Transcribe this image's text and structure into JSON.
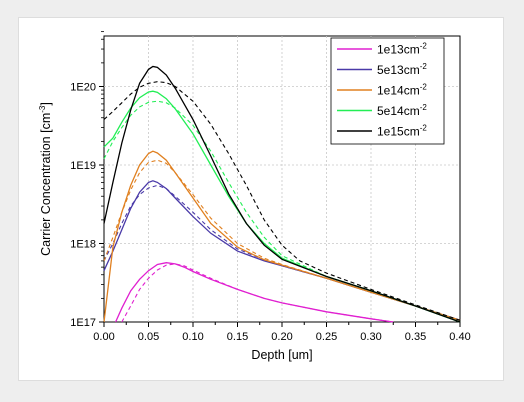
{
  "chart_data": {
    "type": "line",
    "xlabel": "Depth [um]",
    "ylabel": "Carrier Concentration [cm",
    "ylabel_sup": "-3",
    "ylabel_tail": "]",
    "xlim": [
      0,
      0.4
    ],
    "ylim": [
      1e+17,
      5e+20
    ],
    "yscale": "log",
    "grid": true,
    "legend_position": "top-right",
    "xticks": [
      "0.00",
      "0.05",
      "0.10",
      "0.15",
      "0.20",
      "0.25",
      "0.30",
      "0.35",
      "0.40"
    ],
    "yticks": [
      "1E17",
      "1E18",
      "1E19",
      "1E20"
    ],
    "series": [
      {
        "name": "1e13cm",
        "name_sup": "-2",
        "color": "#e020d0",
        "solid": [
          [
            0.013,
            1e+17
          ],
          [
            0.02,
            1.5e+17
          ],
          [
            0.03,
            2.5e+17
          ],
          [
            0.04,
            3.5e+17
          ],
          [
            0.05,
            4.5e+17
          ],
          [
            0.06,
            5.4e+17
          ],
          [
            0.07,
            5.7e+17
          ],
          [
            0.08,
            5.5e+17
          ],
          [
            0.09,
            5e+17
          ],
          [
            0.1,
            4.4e+17
          ],
          [
            0.12,
            3.5e+17
          ],
          [
            0.15,
            2.6e+17
          ],
          [
            0.18,
            2e+17
          ],
          [
            0.2,
            1.75e+17
          ],
          [
            0.25,
            1.35e+17
          ],
          [
            0.3,
            1.1e+17
          ],
          [
            0.325,
            1e+17
          ]
        ],
        "dashed": [
          [
            0.02,
            1e+17
          ],
          [
            0.03,
            1.6e+17
          ],
          [
            0.04,
            2.6e+17
          ],
          [
            0.05,
            3.6e+17
          ],
          [
            0.06,
            4.6e+17
          ],
          [
            0.07,
            5.3e+17
          ],
          [
            0.08,
            5.5e+17
          ],
          [
            0.09,
            5.2e+17
          ],
          [
            0.1,
            4.6e+17
          ],
          [
            0.12,
            3.6e+17
          ],
          [
            0.15,
            2.6e+17
          ],
          [
            0.18,
            2e+17
          ],
          [
            0.2,
            1.75e+17
          ],
          [
            0.25,
            1.35e+17
          ],
          [
            0.3,
            1.1e+17
          ],
          [
            0.325,
            1e+17
          ]
        ]
      },
      {
        "name": "5e13cm",
        "name_sup": "-2",
        "color": "#4a3aa8",
        "solid": [
          [
            0.0,
            4.5e+17
          ],
          [
            0.01,
            8e+17
          ],
          [
            0.02,
            1.5e+18
          ],
          [
            0.03,
            2.8e+18
          ],
          [
            0.04,
            4.5e+18
          ],
          [
            0.05,
            6e+18
          ],
          [
            0.055,
            6.3e+18
          ],
          [
            0.06,
            6e+18
          ],
          [
            0.07,
            5e+18
          ],
          [
            0.08,
            3.8e+18
          ],
          [
            0.1,
            2.2e+18
          ],
          [
            0.12,
            1.35e+18
          ],
          [
            0.15,
            8e+17
          ],
          [
            0.18,
            6e+17
          ],
          [
            0.2,
            5.2e+17
          ],
          [
            0.25,
            3.6e+17
          ],
          [
            0.3,
            2.4e+17
          ],
          [
            0.35,
            1.6e+17
          ],
          [
            0.4,
            1.05e+17
          ]
        ],
        "dashed": [
          [
            0.0,
            6e+17
          ],
          [
            0.01,
            1e+18
          ],
          [
            0.02,
            1.8e+18
          ],
          [
            0.03,
            3e+18
          ],
          [
            0.04,
            4.2e+18
          ],
          [
            0.05,
            5.1e+18
          ],
          [
            0.06,
            5.5e+18
          ],
          [
            0.07,
            5e+18
          ],
          [
            0.08,
            4e+18
          ],
          [
            0.1,
            2.5e+18
          ],
          [
            0.12,
            1.5e+18
          ],
          [
            0.15,
            8.5e+17
          ],
          [
            0.18,
            6.2e+17
          ],
          [
            0.2,
            5.2e+17
          ],
          [
            0.25,
            3.6e+17
          ],
          [
            0.3,
            2.4e+17
          ],
          [
            0.35,
            1.6e+17
          ],
          [
            0.4,
            1.05e+17
          ]
        ]
      },
      {
        "name": "1e14cm",
        "name_sup": "-2",
        "color": "#e08020",
        "solid": [
          [
            0.0,
            1e+17
          ],
          [
            0.01,
            9e+17
          ],
          [
            0.02,
            2.5e+18
          ],
          [
            0.03,
            5.5e+18
          ],
          [
            0.04,
            1e+19
          ],
          [
            0.05,
            1.4e+19
          ],
          [
            0.055,
            1.5e+19
          ],
          [
            0.06,
            1.42e+19
          ],
          [
            0.07,
            1.15e+19
          ],
          [
            0.08,
            8e+18
          ],
          [
            0.1,
            3.8e+18
          ],
          [
            0.12,
            1.8e+18
          ],
          [
            0.15,
            9e+17
          ],
          [
            0.18,
            6.2e+17
          ],
          [
            0.2,
            5.3e+17
          ],
          [
            0.25,
            3.6e+17
          ],
          [
            0.3,
            2.4e+17
          ],
          [
            0.35,
            1.6e+17
          ],
          [
            0.4,
            1.05e+17
          ]
        ],
        "dashed": [
          [
            0.0,
            6e+17
          ],
          [
            0.01,
            1.2e+18
          ],
          [
            0.02,
            2.5e+18
          ],
          [
            0.03,
            4.8e+18
          ],
          [
            0.04,
            8e+18
          ],
          [
            0.05,
            1.08e+19
          ],
          [
            0.06,
            1.15e+19
          ],
          [
            0.07,
            1.05e+19
          ],
          [
            0.08,
            8e+18
          ],
          [
            0.1,
            4.2e+18
          ],
          [
            0.12,
            2.1e+18
          ],
          [
            0.15,
            1e+18
          ],
          [
            0.18,
            6.5e+17
          ],
          [
            0.2,
            5.4e+17
          ],
          [
            0.25,
            3.6e+17
          ],
          [
            0.3,
            2.4e+17
          ],
          [
            0.35,
            1.6e+17
          ],
          [
            0.4,
            1.05e+17
          ]
        ]
      },
      {
        "name": "5e14cm",
        "name_sup": "-2",
        "color": "#22ee55",
        "solid": [
          [
            0.0,
            1.7e+19
          ],
          [
            0.01,
            2.2e+19
          ],
          [
            0.02,
            3.5e+19
          ],
          [
            0.03,
            5.3e+19
          ],
          [
            0.04,
            7.2e+19
          ],
          [
            0.05,
            8.5e+19
          ],
          [
            0.055,
            8.7e+19
          ],
          [
            0.06,
            8.4e+19
          ],
          [
            0.07,
            7e+19
          ],
          [
            0.08,
            5.2e+19
          ],
          [
            0.1,
            2.5e+19
          ],
          [
            0.12,
            1e+19
          ],
          [
            0.14,
            4e+18
          ],
          [
            0.16,
            1.8e+18
          ],
          [
            0.18,
            1e+18
          ],
          [
            0.2,
            6.5e+17
          ],
          [
            0.25,
            3.8e+17
          ],
          [
            0.3,
            2.5e+17
          ],
          [
            0.35,
            1.6e+17
          ],
          [
            0.4,
            1e+17
          ]
        ],
        "dashed": [
          [
            0.0,
            1.2e+19
          ],
          [
            0.01,
            2e+19
          ],
          [
            0.02,
            3e+19
          ],
          [
            0.03,
            4.3e+19
          ],
          [
            0.04,
            5.5e+19
          ],
          [
            0.05,
            6.3e+19
          ],
          [
            0.06,
            6.5e+19
          ],
          [
            0.07,
            6.2e+19
          ],
          [
            0.08,
            5.3e+19
          ],
          [
            0.1,
            3.2e+19
          ],
          [
            0.12,
            1.5e+19
          ],
          [
            0.14,
            6e+18
          ],
          [
            0.16,
            2.5e+18
          ],
          [
            0.18,
            1.2e+18
          ],
          [
            0.2,
            7e+17
          ],
          [
            0.25,
            3.8e+17
          ],
          [
            0.3,
            2.5e+17
          ],
          [
            0.35,
            1.6e+17
          ],
          [
            0.4,
            1e+17
          ]
        ]
      },
      {
        "name": "1e15cm",
        "name_sup": "-2",
        "color": "#000000",
        "solid": [
          [
            0.0,
            1.8e+18
          ],
          [
            0.01,
            6e+18
          ],
          [
            0.02,
            1.9e+19
          ],
          [
            0.03,
            5e+19
          ],
          [
            0.04,
            1.1e+20
          ],
          [
            0.05,
            1.65e+20
          ],
          [
            0.055,
            1.8e+20
          ],
          [
            0.06,
            1.75e+20
          ],
          [
            0.07,
            1.4e+20
          ],
          [
            0.08,
            9.5e+19
          ],
          [
            0.1,
            3.8e+19
          ],
          [
            0.12,
            1.3e+19
          ],
          [
            0.14,
            4.3e+18
          ],
          [
            0.16,
            1.8e+18
          ],
          [
            0.18,
            9.5e+17
          ],
          [
            0.2,
            6.3e+17
          ],
          [
            0.25,
            3.8e+17
          ],
          [
            0.3,
            2.5e+17
          ],
          [
            0.35,
            1.6e+17
          ],
          [
            0.4,
            1e+17
          ]
        ],
        "dashed": [
          [
            0.0,
            3.8e+19
          ],
          [
            0.01,
            4.8e+19
          ],
          [
            0.02,
            6.2e+19
          ],
          [
            0.03,
            8e+19
          ],
          [
            0.04,
            9.8e+19
          ],
          [
            0.05,
            1.1e+20
          ],
          [
            0.06,
            1.15e+20
          ],
          [
            0.07,
            1.12e+20
          ],
          [
            0.08,
            1e+20
          ],
          [
            0.1,
            6.5e+19
          ],
          [
            0.12,
            3.3e+19
          ],
          [
            0.14,
            1.4e+19
          ],
          [
            0.16,
            5.5e+18
          ],
          [
            0.18,
            2e+18
          ],
          [
            0.2,
            9.5e+17
          ],
          [
            0.22,
            6e+17
          ],
          [
            0.25,
            4.2e+17
          ],
          [
            0.3,
            2.6e+17
          ],
          [
            0.35,
            1.65e+17
          ],
          [
            0.4,
            1.05e+17
          ]
        ]
      }
    ]
  }
}
